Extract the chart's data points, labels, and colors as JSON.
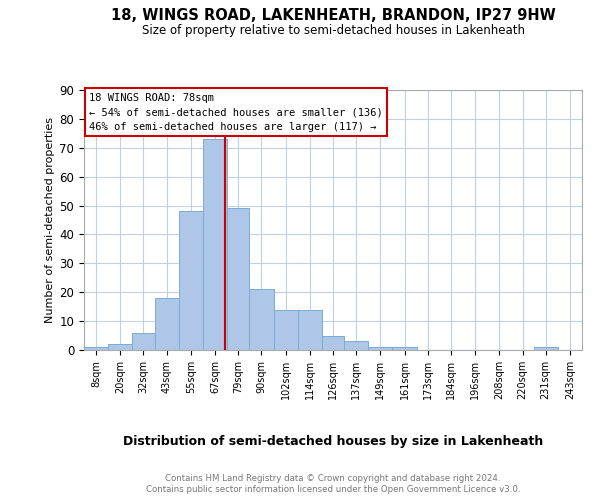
{
  "title": "18, WINGS ROAD, LAKENHEATH, BRANDON, IP27 9HW",
  "subtitle": "Size of property relative to semi-detached houses in Lakenheath",
  "xlabel": "Distribution of semi-detached houses by size in Lakenheath",
  "ylabel": "Number of semi-detached properties",
  "footer1": "Contains HM Land Registry data © Crown copyright and database right 2024.",
  "footer2": "Contains public sector information licensed under the Open Government Licence v3.0.",
  "annotation_title": "18 WINGS ROAD: 78sqm",
  "annotation_line2": "← 54% of semi-detached houses are smaller (136)",
  "annotation_line3": "46% of semi-detached houses are larger (117) →",
  "property_size": 78,
  "categories": [
    "8sqm",
    "20sqm",
    "32sqm",
    "43sqm",
    "55sqm",
    "67sqm",
    "79sqm",
    "90sqm",
    "102sqm",
    "114sqm",
    "126sqm",
    "137sqm",
    "149sqm",
    "161sqm",
    "173sqm",
    "184sqm",
    "196sqm",
    "208sqm",
    "220sqm",
    "231sqm",
    "243sqm"
  ],
  "bin_edges": [
    8,
    20,
    32,
    43,
    55,
    67,
    79,
    90,
    102,
    114,
    126,
    137,
    149,
    161,
    173,
    184,
    196,
    208,
    220,
    231,
    243,
    255
  ],
  "values": [
    1,
    2,
    6,
    18,
    48,
    73,
    49,
    21,
    14,
    14,
    5,
    3,
    1,
    1,
    0,
    0,
    0,
    0,
    0,
    1,
    0
  ],
  "bar_color": "#aec6e8",
  "bar_edge_color": "#7aadd4",
  "line_color": "#cc0000",
  "annotation_box_color": "#cc0000",
  "background_color": "#ffffff",
  "grid_color": "#c0d0e0",
  "ylim": [
    0,
    90
  ],
  "yticks": [
    0,
    10,
    20,
    30,
    40,
    50,
    60,
    70,
    80,
    90
  ]
}
